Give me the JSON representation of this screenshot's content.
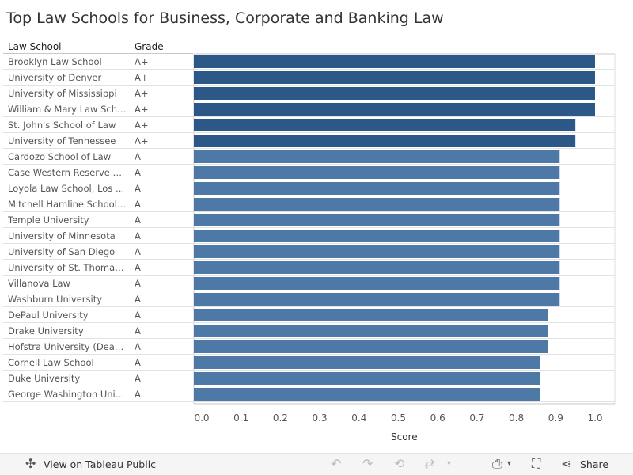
{
  "title": "Top Law Schools for Business, Corporate and Banking Law",
  "columns": {
    "school": "Law School",
    "grade": "Grade"
  },
  "rows": [
    {
      "school": "Brooklyn Law School",
      "grade": "A+"
    },
    {
      "school": "University of Denver",
      "grade": "A+"
    },
    {
      "school": "University of Mississippi",
      "grade": "A+"
    },
    {
      "school": "William & Mary Law School",
      "grade": "A+"
    },
    {
      "school": "St. John's School of Law",
      "grade": "A+"
    },
    {
      "school": "University of Tennessee",
      "grade": "A+"
    },
    {
      "school": "Cardozo School of Law",
      "grade": "A"
    },
    {
      "school": "Case Western Reserve Un..",
      "grade": "A"
    },
    {
      "school": "Loyola Law School, Los An..",
      "grade": "A"
    },
    {
      "school": "Mitchell Hamline School o..",
      "grade": "A"
    },
    {
      "school": "Temple University",
      "grade": "A"
    },
    {
      "school": "University of Minnesota",
      "grade": "A"
    },
    {
      "school": "University of San Diego",
      "grade": "A"
    },
    {
      "school": "University of St. Thomas -..",
      "grade": "A"
    },
    {
      "school": "Villanova Law",
      "grade": "A"
    },
    {
      "school": "Washburn University",
      "grade": "A"
    },
    {
      "school": "DePaul University",
      "grade": "A"
    },
    {
      "school": "Drake University",
      "grade": "A"
    },
    {
      "school": "Hofstra University (Deane)",
      "grade": "A"
    },
    {
      "school": "Cornell Law School",
      "grade": "A"
    },
    {
      "school": "Duke University",
      "grade": "A"
    },
    {
      "school": "George Washington Unive..",
      "grade": "A"
    }
  ],
  "chart_data": {
    "type": "bar",
    "orientation": "horizontal",
    "categories": [
      "Brooklyn Law School",
      "University of Denver",
      "University of Mississippi",
      "William & Mary Law School",
      "St. John's School of Law",
      "University of Tennessee",
      "Cardozo School of Law",
      "Case Western Reserve Un..",
      "Loyola Law School, Los An..",
      "Mitchell Hamline School o..",
      "Temple University",
      "University of Minnesota",
      "University of San Diego",
      "University of St. Thomas -..",
      "Villanova Law",
      "Washburn University",
      "DePaul University",
      "Drake University",
      "Hofstra University (Deane)",
      "Cornell Law School",
      "Duke University",
      "George Washington Unive.."
    ],
    "values": [
      1.0,
      1.0,
      1.0,
      1.0,
      0.95,
      0.95,
      0.91,
      0.91,
      0.91,
      0.91,
      0.91,
      0.91,
      0.91,
      0.91,
      0.91,
      0.91,
      0.88,
      0.88,
      0.88,
      0.86,
      0.86,
      0.86
    ],
    "title": "Top Law Schools for Business, Corporate and Banking Law",
    "xlabel": "Score",
    "ylabel": "",
    "xlim": [
      0,
      1.05
    ],
    "xticks": [
      "0.0",
      "0.1",
      "0.2",
      "0.3",
      "0.4",
      "0.5",
      "0.6",
      "0.7",
      "0.8",
      "0.9",
      "1.0"
    ],
    "grid": true,
    "colors": {
      "A+": "#2b5886",
      "A": "#4e79a7"
    }
  },
  "toolbar": {
    "view_label": "View on Tableau Public",
    "share_label": "Share"
  }
}
